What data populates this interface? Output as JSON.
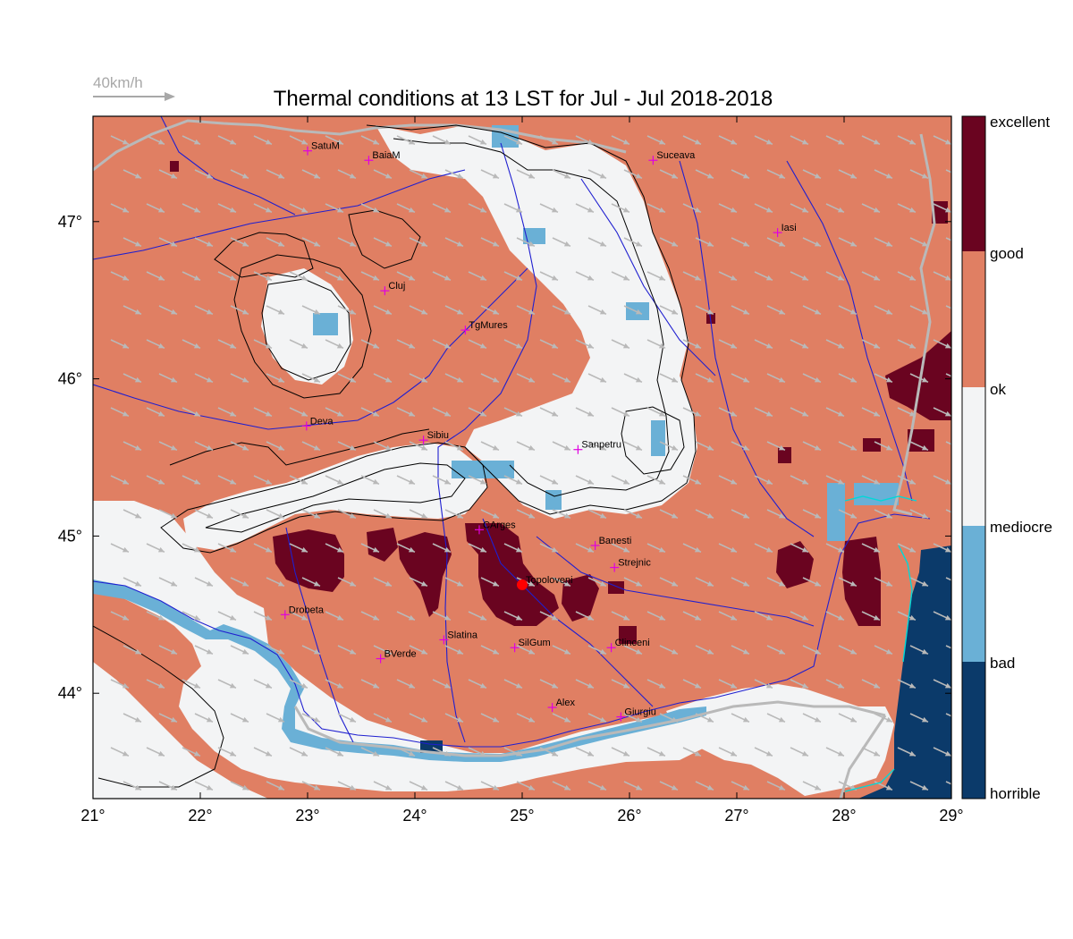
{
  "title": "Thermal conditions at 13 LST for Jul - Jul  2018-2018",
  "wind_scale": {
    "label": "40km/h"
  },
  "axes": {
    "x_ticks": [
      {
        "value": 21,
        "label": "21°"
      },
      {
        "value": 22,
        "label": "22°"
      },
      {
        "value": 23,
        "label": "23°"
      },
      {
        "value": 24,
        "label": "24°"
      },
      {
        "value": 25,
        "label": "25°"
      },
      {
        "value": 26,
        "label": "26°"
      },
      {
        "value": 27,
        "label": "27°"
      },
      {
        "value": 28,
        "label": "28°"
      },
      {
        "value": 29,
        "label": "29°"
      }
    ],
    "y_ticks": [
      {
        "value": 44,
        "label": "44°"
      },
      {
        "value": 45,
        "label": "45°"
      },
      {
        "value": 46,
        "label": "46°"
      },
      {
        "value": 47,
        "label": "47°"
      }
    ],
    "lon_range": [
      21,
      29
    ],
    "lat_range": [
      43.33,
      47.67
    ]
  },
  "colorbar": {
    "classes": [
      {
        "label": "excellent",
        "color": "#67001f"
      },
      {
        "label": "good",
        "color": "#e07f63"
      },
      {
        "label": "ok",
        "color": "#f5f5f5"
      },
      {
        "label": "mediocre",
        "color": "#6fb0d4"
      },
      {
        "label": "bad",
        "color": "#0d3a6b"
      },
      {
        "label": "horrible",
        "color": ""
      }
    ]
  },
  "colors": {
    "good": "#e07f63",
    "ok": "#f3f4f5",
    "mediocre": "#6ab0d6",
    "excellent": "#6a0420",
    "horrible": "#0b3a6a",
    "river": "#1f1fd0",
    "border": "#b9b9b9",
    "contour": "#000000",
    "city_marker": "#e000e0",
    "highlight_point": "#ff0000",
    "wind_arrow": "#b9b9b9"
  },
  "cities": [
    {
      "name": "SatuM",
      "lon": 23.0,
      "lat": 47.45
    },
    {
      "name": "BaiaM",
      "lon": 23.57,
      "lat": 47.39
    },
    {
      "name": "Suceava",
      "lon": 26.22,
      "lat": 47.39
    },
    {
      "name": "Iasi",
      "lon": 27.38,
      "lat": 46.93
    },
    {
      "name": "Cluj",
      "lon": 23.72,
      "lat": 46.56
    },
    {
      "name": "TgMures",
      "lon": 24.47,
      "lat": 46.31
    },
    {
      "name": "Deva",
      "lon": 22.99,
      "lat": 45.7
    },
    {
      "name": "Sibiu",
      "lon": 24.08,
      "lat": 45.61
    },
    {
      "name": "Sanpetru",
      "lon": 25.52,
      "lat": 45.55
    },
    {
      "name": "CArges",
      "lon": 24.6,
      "lat": 45.04
    },
    {
      "name": "Banesti",
      "lon": 25.68,
      "lat": 44.94
    },
    {
      "name": "Strejnic",
      "lon": 25.86,
      "lat": 44.8
    },
    {
      "name": "Topoloveni",
      "lon": 25.0,
      "lat": 44.69
    },
    {
      "name": "Drobeta",
      "lon": 22.79,
      "lat": 44.5
    },
    {
      "name": "Slatina",
      "lon": 24.27,
      "lat": 44.34
    },
    {
      "name": "SilGum",
      "lon": 24.93,
      "lat": 44.29
    },
    {
      "name": "Clinceni",
      "lon": 25.83,
      "lat": 44.29
    },
    {
      "name": "BVerde",
      "lon": 23.68,
      "lat": 44.22
    },
    {
      "name": "Alex",
      "lon": 25.28,
      "lat": 43.91
    },
    {
      "name": "Giurgiu",
      "lon": 25.92,
      "lat": 43.85
    }
  ],
  "highlight_point": {
    "lon": 25.0,
    "lat": 44.69
  }
}
